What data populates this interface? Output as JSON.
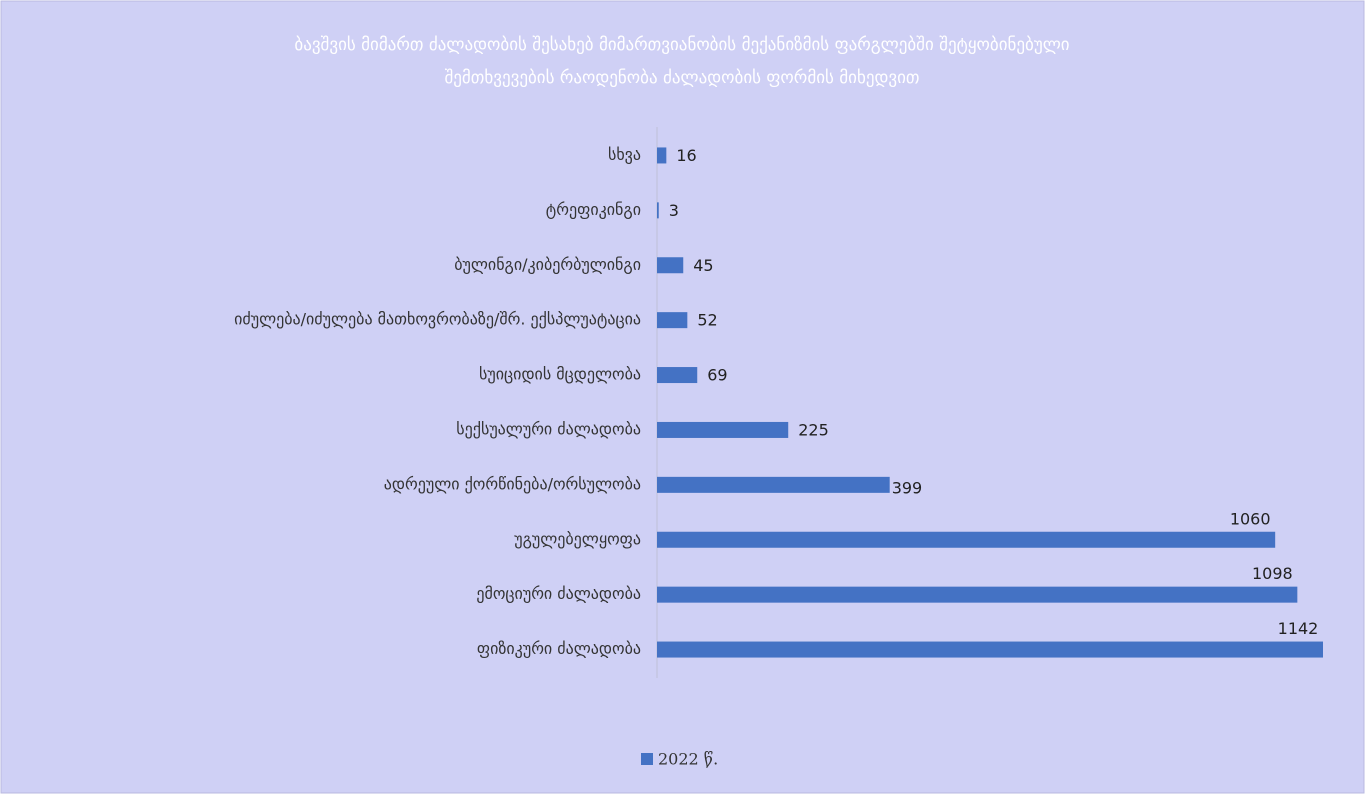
{
  "chart_data": {
    "type": "bar",
    "orientation": "horizontal",
    "title": [
      "ბავშვის მიმართ ძალადობის შესახებ მიმართვიანობის მექანიზმის ფარგლებში შეტყობინებული",
      "შემთხვევების რაოდენობა ძალადობის ფორმის მიხედვით"
    ],
    "categories": [
      "სხვა",
      "ტრეფიკინგი",
      "ბულინგი/კიბერბულინგი",
      "იძულება/იძულება მათხოვრობაზე/შრ. ექსპლუატაცია",
      "სუიციდის მცდელობა",
      "სექსუალური ძალადობა",
      "ადრეული ქორწინება/ორსულობა",
      "უგულებელყოფა",
      "ემოციური ძალადობა",
      "ფიზიკური ძალადობა"
    ],
    "series": [
      {
        "name": "2022 წ.",
        "color": "#4472c4",
        "values": [
          16,
          3,
          45,
          52,
          69,
          225,
          399,
          1060,
          1098,
          1142
        ]
      }
    ],
    "legend": "bottom"
  }
}
